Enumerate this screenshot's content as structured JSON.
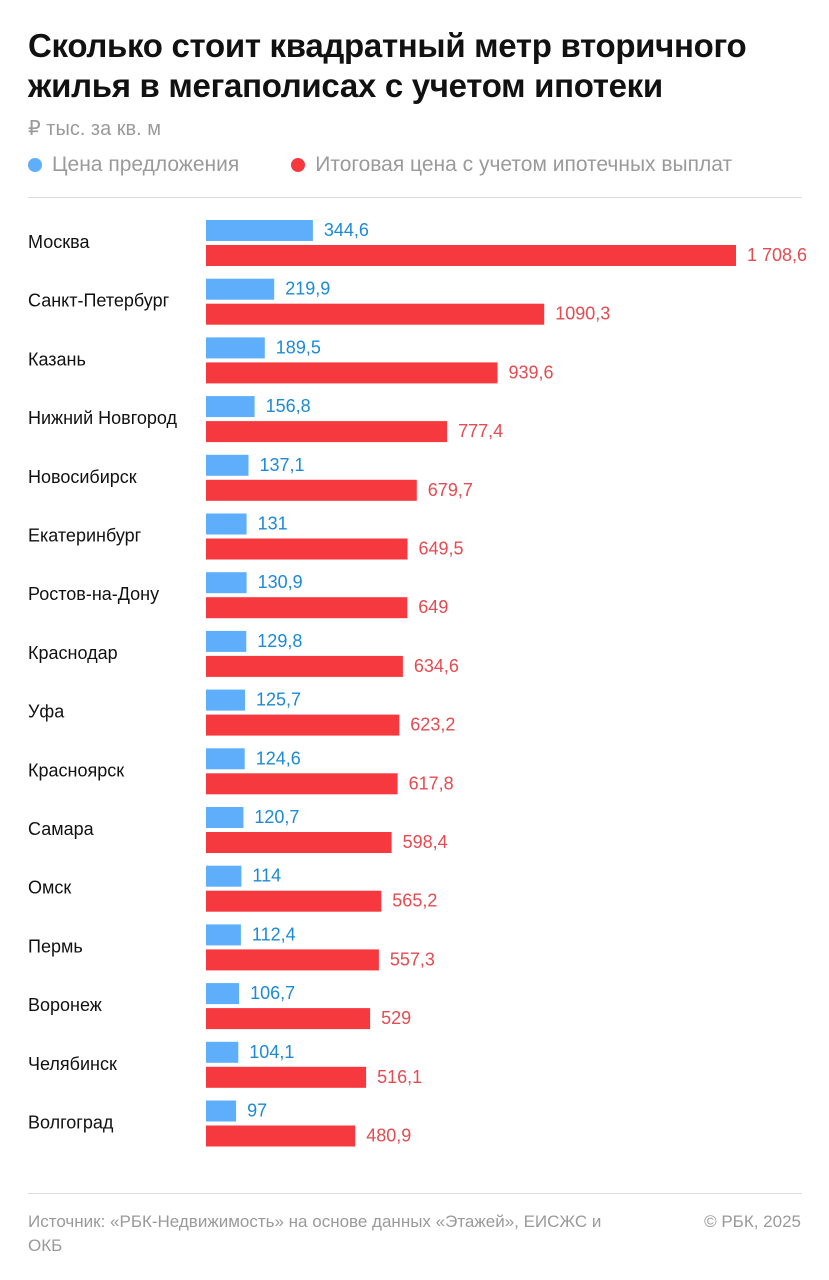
{
  "colors": {
    "offer": "#5eaefc",
    "total": "#f6383f",
    "offer_label": "#1c8ad6",
    "total_label": "#e54b50"
  },
  "chart_data": {
    "type": "bar",
    "orientation": "horizontal",
    "title": "Сколько стоит квадратный метр вторичного жилья в мегаполисах с учетом ипотеки",
    "subtitle": "₽ тыс. за кв. м",
    "categories": [
      "Москва",
      "Санкт-Петербург",
      "Казань",
      "Нижний Новгород",
      "Новосибирск",
      "Екатеринбург",
      "Ростов-на-Дону",
      "Краснодар",
      "Уфа",
      "Красноярск",
      "Самара",
      "Омск",
      "Пермь",
      "Воронеж",
      "Челябинск",
      "Волгоград"
    ],
    "series": [
      {
        "name": "Цена предложения",
        "values": [
          344.6,
          219.9,
          189.5,
          156.8,
          137.1,
          131,
          130.9,
          129.8,
          125.7,
          124.6,
          120.7,
          114,
          112.4,
          106.7,
          104.1,
          97
        ],
        "labels": [
          "344,6",
          "219,9",
          "189,5",
          "156,8",
          "137,1",
          "131",
          "130,9",
          "129,8",
          "125,7",
          "124,6",
          "120,7",
          "114",
          "112,4",
          "106,7",
          "104,1",
          "97"
        ]
      },
      {
        "name": "Итоговая цена с учетом ипотечных выплат",
        "values": [
          1708.6,
          1090.3,
          939.6,
          777.4,
          679.7,
          649.5,
          649,
          634.6,
          623.2,
          617.8,
          598.4,
          565.2,
          557.3,
          529,
          516.1,
          480.9
        ],
        "labels": [
          "1 708,6",
          "1090,3",
          "939,6",
          "777,4",
          "679,7",
          "649,5",
          "649",
          "634,6",
          "623,2",
          "617,8",
          "598,4",
          "565,2",
          "557,3",
          "529",
          "516,1",
          "480,9"
        ]
      }
    ],
    "xlim": [
      0,
      1708.6
    ],
    "grid": false,
    "legend_position": "top-left"
  },
  "footer": {
    "source": "Источник: «РБК-Недвижимость» на основе данных «Этажей», ЕИСЖС и ОКБ",
    "copyright": "© РБК, 2025"
  }
}
